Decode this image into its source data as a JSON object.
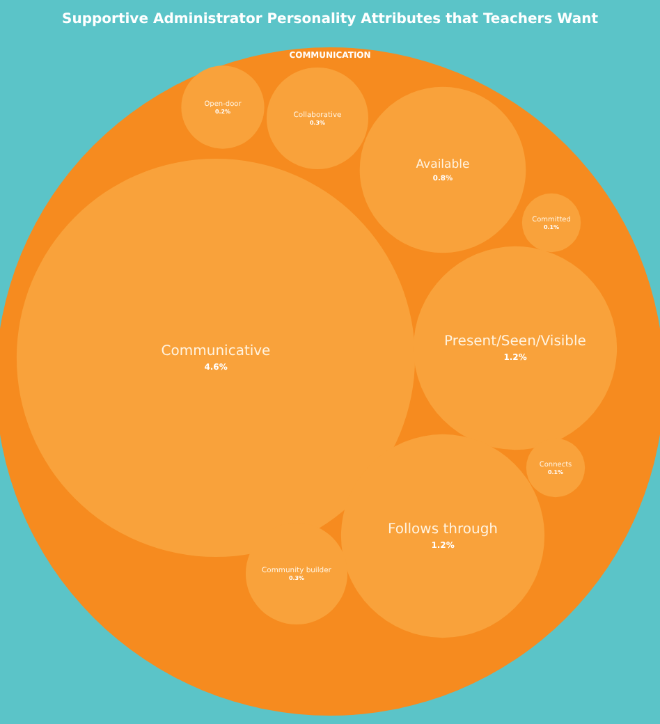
{
  "chart_data": {
    "type": "other",
    "title": "Supportive Administrator Personality Attributes that Teachers Want",
    "legend_title": "COMMUNICATION",
    "categories": [
      "Open-door",
      "Collaborative",
      "Available",
      "Committed",
      "Communicative",
      "Present/Seen/Visible",
      "Connects",
      "Follows through",
      "Community builder"
    ],
    "values": [
      0.2,
      0.3,
      0.8,
      0.1,
      4.6,
      1.2,
      0.1,
      1.2,
      0.3
    ],
    "value_labels": [
      "0.2%",
      "0.3%",
      "0.8%",
      "0.1%",
      "4.6%",
      "1.2%",
      "0.1%",
      "1.2%",
      "0.3%"
    ],
    "color": "#f68b1f",
    "colors": [
      "#f9a23b",
      "#f9a23b",
      "#f9a23b",
      "#f9a23b",
      "#f9a23b",
      "#f9a23b",
      "#f9a23b",
      "#f9a23b",
      "#f9a23b"
    ]
  }
}
